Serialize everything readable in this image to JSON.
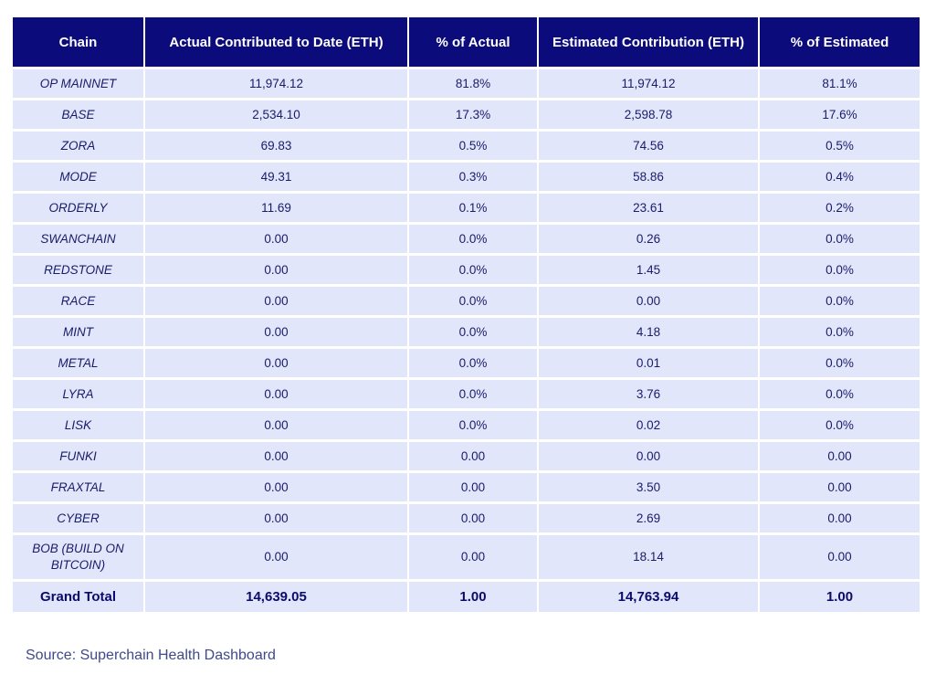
{
  "table": {
    "headers": [
      "Chain",
      "Actual Contributed to Date (ETH)",
      "% of Actual",
      "Estimated Contribution (ETH)",
      "% of Estimated"
    ],
    "rows": [
      [
        "OP MAINNET",
        "11,974.12",
        "81.8%",
        "11,974.12",
        "81.1%"
      ],
      [
        "BASE",
        "2,534.10",
        "17.3%",
        "2,598.78",
        "17.6%"
      ],
      [
        "ZORA",
        "69.83",
        "0.5%",
        "74.56",
        "0.5%"
      ],
      [
        "MODE",
        "49.31",
        "0.3%",
        "58.86",
        "0.4%"
      ],
      [
        "ORDERLY",
        "11.69",
        "0.1%",
        "23.61",
        "0.2%"
      ],
      [
        "SWANCHAIN",
        "0.00",
        "0.0%",
        "0.26",
        "0.0%"
      ],
      [
        "REDSTONE",
        "0.00",
        "0.0%",
        "1.45",
        "0.0%"
      ],
      [
        "RACE",
        "0.00",
        "0.0%",
        "0.00",
        "0.0%"
      ],
      [
        "MINT",
        "0.00",
        "0.0%",
        "4.18",
        "0.0%"
      ],
      [
        "METAL",
        "0.00",
        "0.0%",
        "0.01",
        "0.0%"
      ],
      [
        "LYRA",
        "0.00",
        "0.0%",
        "3.76",
        "0.0%"
      ],
      [
        "LISK",
        "0.00",
        "0.0%",
        "0.02",
        "0.0%"
      ],
      [
        "FUNKI",
        "0.00",
        "0.00",
        "0.00",
        "0.00"
      ],
      [
        "FRAXTAL",
        "0.00",
        "0.00",
        "3.50",
        "0.00"
      ],
      [
        "CYBER",
        "0.00",
        "0.00",
        "2.69",
        "0.00"
      ],
      [
        "BOB (BUILD ON BITCOIN)",
        "0.00",
        "0.00",
        "18.14",
        "0.00"
      ]
    ],
    "total": [
      "Grand Total",
      "14,639.05",
      "1.00",
      "14,763.94",
      "1.00"
    ]
  },
  "source": "Source: Superchain Health Dashboard",
  "colors": {
    "header_bg": "#0b0b7c",
    "header_text": "#ffffff",
    "cell_bg": "#e2e6fb",
    "cell_text": "#181c6a"
  }
}
